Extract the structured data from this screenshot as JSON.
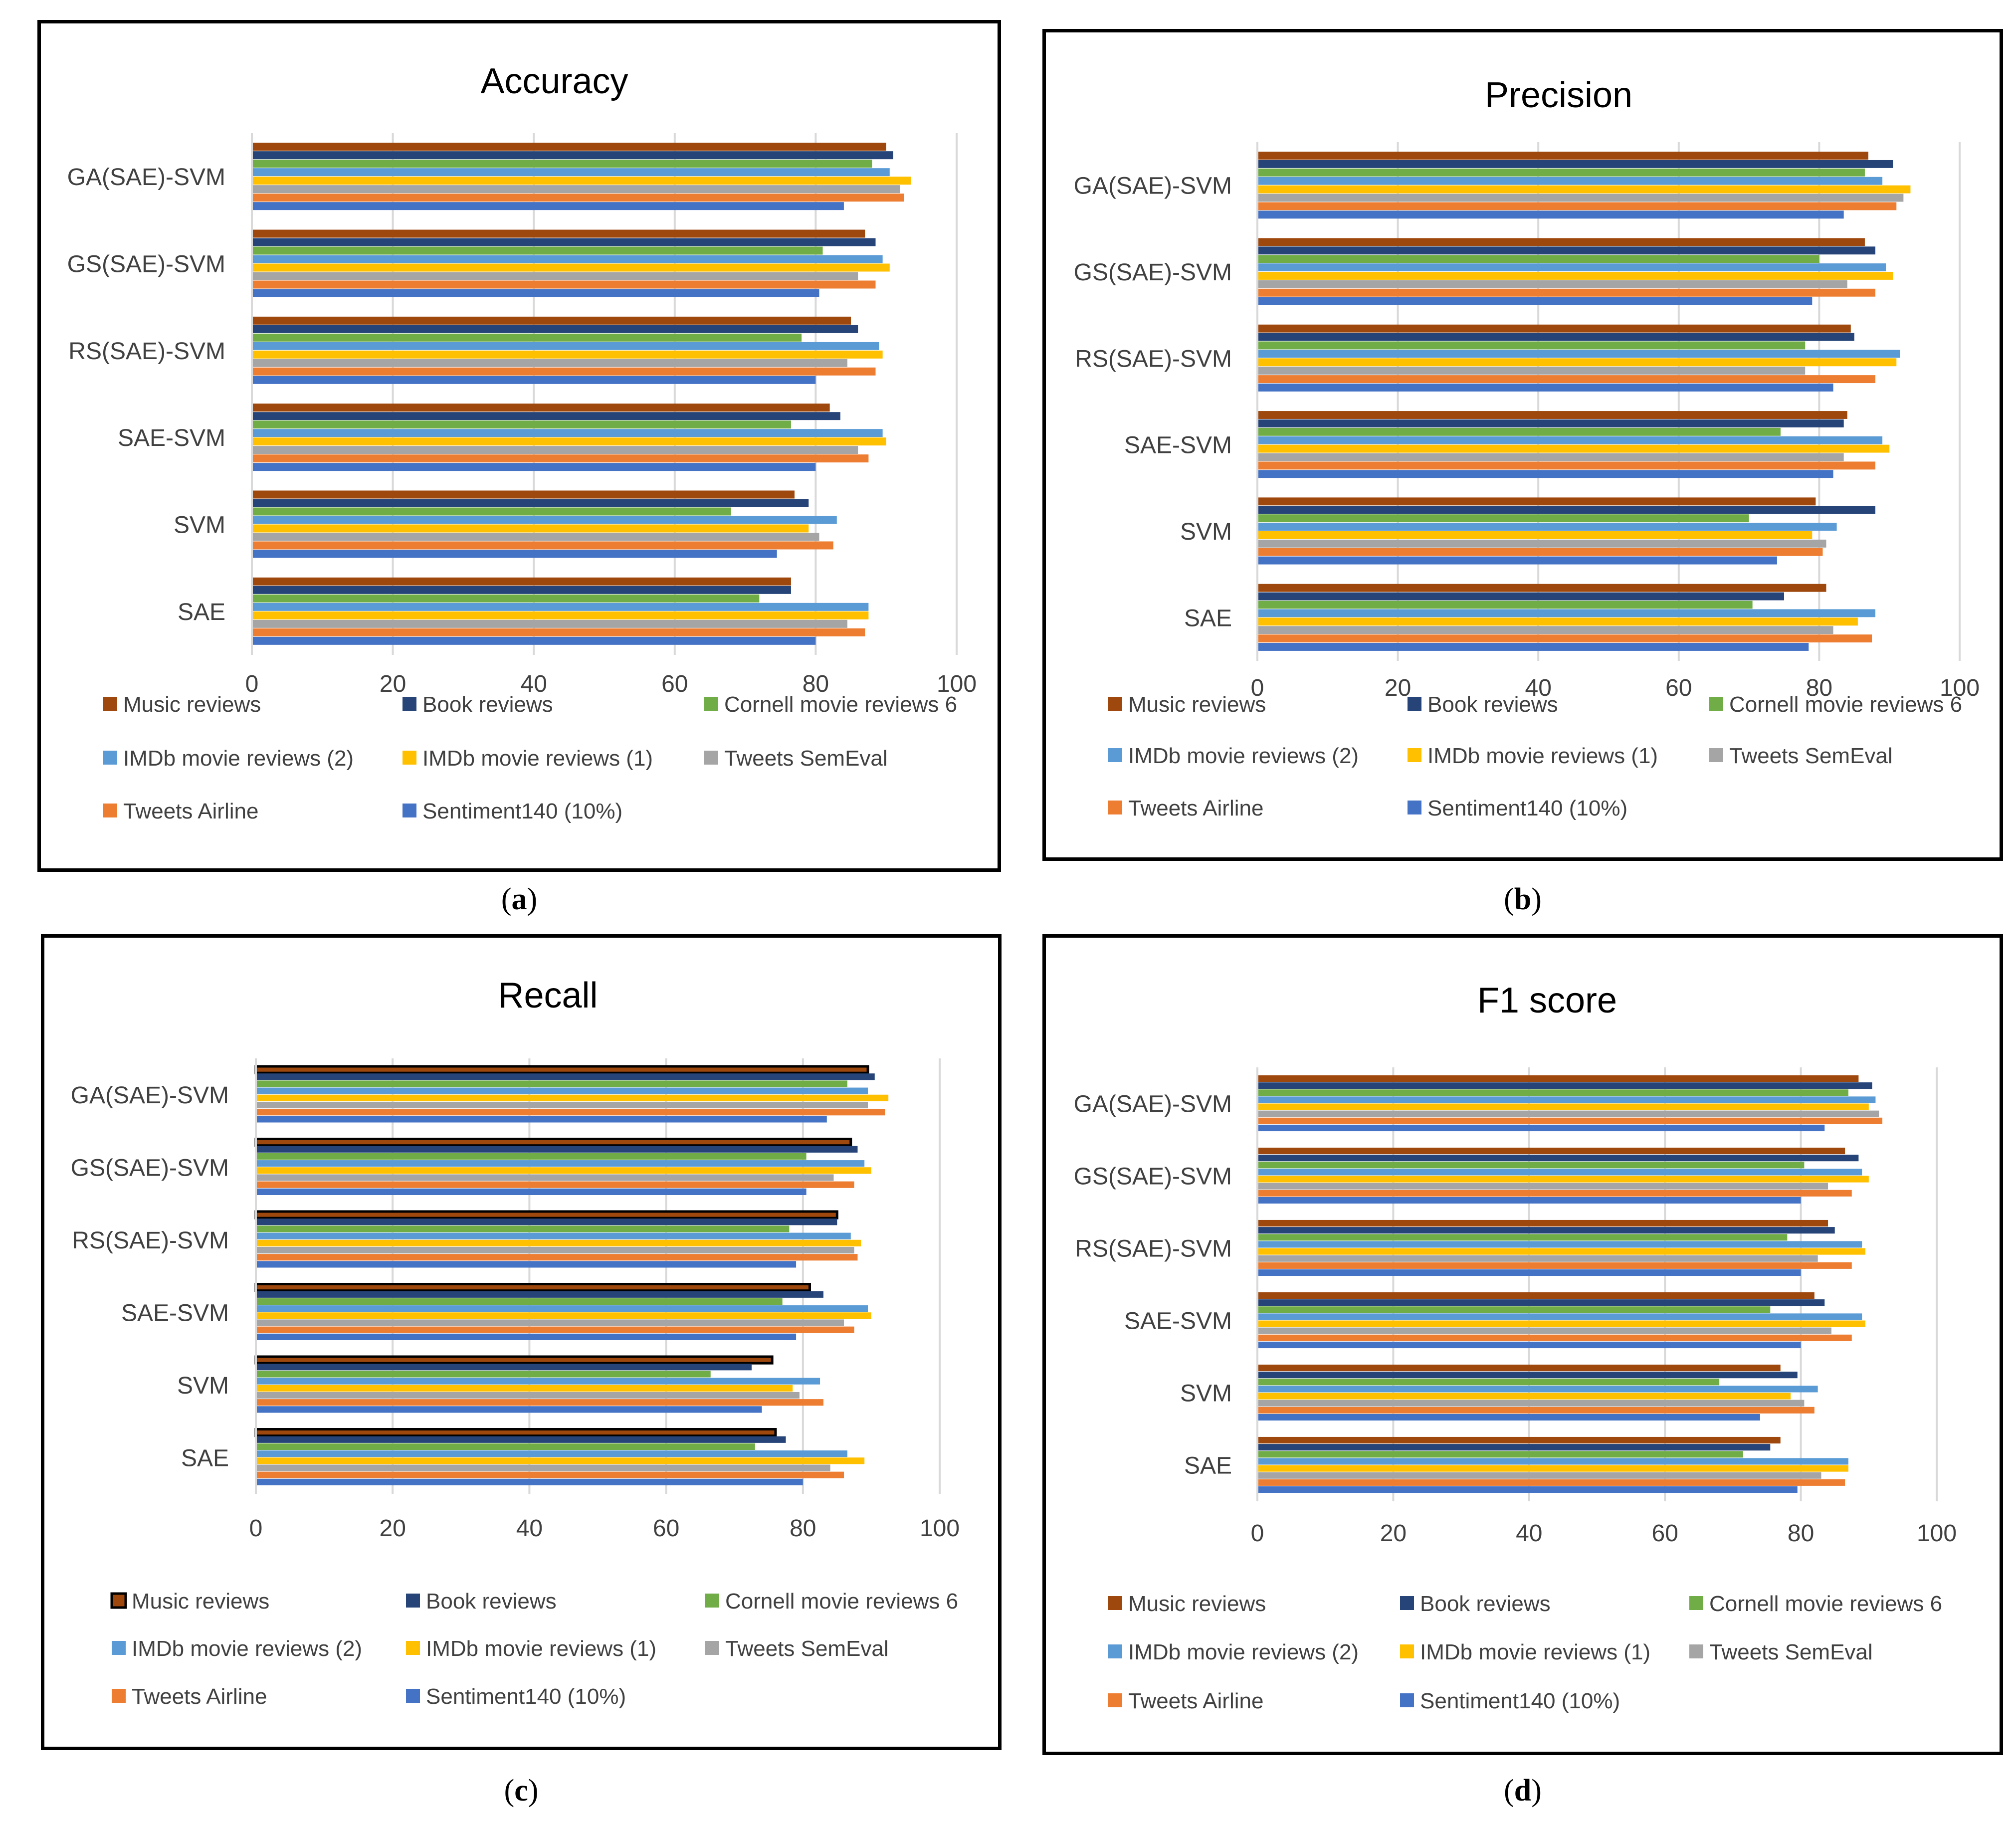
{
  "colors": {
    "Music reviews": "#9E480E",
    "Book reviews": "#264478",
    "Cornell movie reviews 6": "#70AD47",
    "IMDb movie reviews (2)": "#5B9BD5",
    "IMDb movie reviews (1)": "#FFC000",
    "Tweets SemEval": "#A5A5A5",
    "Tweets Airline": "#ED7D31",
    "Sentiment140 (10%)": "#4472C4",
    "gridline": "#d9d9d9",
    "text": "#404040"
  },
  "chart_data": [
    {
      "id": "a",
      "caption_letter": "a",
      "type": "bar",
      "orientation": "horizontal",
      "title": "Accuracy",
      "xlim": [
        0,
        100
      ],
      "xticks": [
        "0",
        "20",
        "40",
        "60",
        "80",
        "100"
      ],
      "categories": [
        "GA(SAE)-SVM",
        "GS(SAE)-SVM",
        "RS(SAE)-SVM",
        "SAE-SVM",
        "SVM",
        "SAE"
      ],
      "legend": "bottom",
      "series": [
        {
          "name": "Music reviews",
          "values": [
            90,
            87,
            85,
            82,
            77,
            76.5
          ]
        },
        {
          "name": "Book reviews",
          "values": [
            91,
            88.5,
            86,
            83.5,
            79,
            76.5
          ]
        },
        {
          "name": "Cornell movie reviews 6",
          "values": [
            88,
            81,
            78,
            76.5,
            68,
            72
          ]
        },
        {
          "name": "IMDb movie reviews (2)",
          "values": [
            90.5,
            89.5,
            89,
            89.5,
            83,
            87.5
          ]
        },
        {
          "name": "IMDb movie reviews (1)",
          "values": [
            93.5,
            90.5,
            89.5,
            90,
            79,
            87.5
          ]
        },
        {
          "name": "Tweets SemEval",
          "values": [
            92,
            86,
            84.5,
            86,
            80.5,
            84.5
          ]
        },
        {
          "name": "Tweets Airline",
          "values": [
            92.5,
            88.5,
            88.5,
            87.5,
            82.5,
            87
          ]
        },
        {
          "name": "Sentiment140 (10%)",
          "values": [
            84,
            80.5,
            80,
            80,
            74.5,
            80
          ]
        }
      ]
    },
    {
      "id": "b",
      "caption_letter": "b",
      "type": "bar",
      "orientation": "horizontal",
      "title": "Precision",
      "xlim": [
        0,
        100
      ],
      "xticks": [
        "0",
        "20",
        "40",
        "60",
        "80",
        "100"
      ],
      "categories": [
        "GA(SAE)-SVM",
        "GS(SAE)-SVM",
        "RS(SAE)-SVM",
        "SAE-SVM",
        "SVM",
        "SAE"
      ],
      "legend": "bottom",
      "series": [
        {
          "name": "Music reviews",
          "values": [
            87,
            86.5,
            84.5,
            84,
            79.5,
            81
          ]
        },
        {
          "name": "Book reviews",
          "values": [
            90.5,
            88,
            85,
            83.5,
            88,
            75
          ]
        },
        {
          "name": "Cornell movie reviews 6",
          "values": [
            86.5,
            80,
            78,
            74.5,
            70,
            70.5
          ]
        },
        {
          "name": "IMDb movie reviews (2)",
          "values": [
            89,
            89.5,
            91.5,
            89,
            82.5,
            88
          ]
        },
        {
          "name": "IMDb movie reviews (1)",
          "values": [
            93,
            90.5,
            91,
            90,
            79,
            85.5
          ]
        },
        {
          "name": "Tweets SemEval",
          "values": [
            92,
            84,
            78,
            83.5,
            81,
            82
          ]
        },
        {
          "name": "Tweets Airline",
          "values": [
            91,
            88,
            88,
            88,
            80.5,
            87.5
          ]
        },
        {
          "name": "Sentiment140 (10%)",
          "values": [
            83.5,
            79,
            82,
            82,
            74,
            78.5
          ]
        }
      ]
    },
    {
      "id": "c",
      "caption_letter": "c",
      "type": "bar",
      "orientation": "horizontal",
      "title": "Recall",
      "xlim": [
        0,
        100
      ],
      "xticks": [
        "0",
        "20",
        "40",
        "60",
        "80",
        "100"
      ],
      "categories": [
        "GA(SAE)-SVM",
        "GS(SAE)-SVM",
        "RS(SAE)-SVM",
        "SAE-SVM",
        "SVM",
        "SAE"
      ],
      "legend": "bottom",
      "outlined_series": "Music reviews",
      "series": [
        {
          "name": "Music reviews",
          "values": [
            89.5,
            87,
            85,
            81,
            75.5,
            76
          ]
        },
        {
          "name": "Book reviews",
          "values": [
            90.5,
            88,
            85,
            83,
            72.5,
            77.5
          ]
        },
        {
          "name": "Cornell movie reviews 6",
          "values": [
            86.5,
            80.5,
            78,
            77,
            66.5,
            73
          ]
        },
        {
          "name": "IMDb movie reviews (2)",
          "values": [
            89.5,
            89,
            87,
            89.5,
            82.5,
            86.5
          ]
        },
        {
          "name": "IMDb movie reviews (1)",
          "values": [
            92.5,
            90,
            88.5,
            90,
            78.5,
            89
          ]
        },
        {
          "name": "Tweets SemEval",
          "values": [
            89.5,
            84.5,
            87.5,
            86,
            79.5,
            84
          ]
        },
        {
          "name": "Tweets Airline",
          "values": [
            92,
            87.5,
            88,
            87.5,
            83,
            86
          ]
        },
        {
          "name": "Sentiment140 (10%)",
          "values": [
            83.5,
            80.5,
            79,
            79,
            74,
            80
          ]
        }
      ]
    },
    {
      "id": "d",
      "caption_letter": "d",
      "type": "bar",
      "orientation": "horizontal",
      "title": "F1 score",
      "xlim": [
        0,
        100
      ],
      "xticks": [
        "0",
        "20",
        "40",
        "60",
        "80",
        "100"
      ],
      "categories": [
        "GA(SAE)-SVM",
        "GS(SAE)-SVM",
        "RS(SAE)-SVM",
        "SAE-SVM",
        "SVM",
        "SAE"
      ],
      "legend": "bottom",
      "series": [
        {
          "name": "Music reviews",
          "values": [
            88.5,
            86.5,
            84,
            82,
            77,
            77
          ]
        },
        {
          "name": "Book reviews",
          "values": [
            90.5,
            88.5,
            85,
            83.5,
            79.5,
            75.5
          ]
        },
        {
          "name": "Cornell movie reviews 6",
          "values": [
            87,
            80.5,
            78,
            75.5,
            68,
            71.5
          ]
        },
        {
          "name": "IMDb movie reviews (2)",
          "values": [
            91,
            89,
            89,
            89,
            82.5,
            87
          ]
        },
        {
          "name": "IMDb movie reviews (1)",
          "values": [
            90,
            90,
            89.5,
            89.5,
            78.5,
            87
          ]
        },
        {
          "name": "Tweets SemEval",
          "values": [
            91.5,
            84,
            82.5,
            84.5,
            80.5,
            83
          ]
        },
        {
          "name": "Tweets Airline",
          "values": [
            92,
            87.5,
            87.5,
            87.5,
            82,
            86.5
          ]
        },
        {
          "name": "Sentiment140 (10%)",
          "values": [
            83.5,
            80,
            80,
            80,
            74,
            79.5
          ]
        }
      ]
    }
  ]
}
